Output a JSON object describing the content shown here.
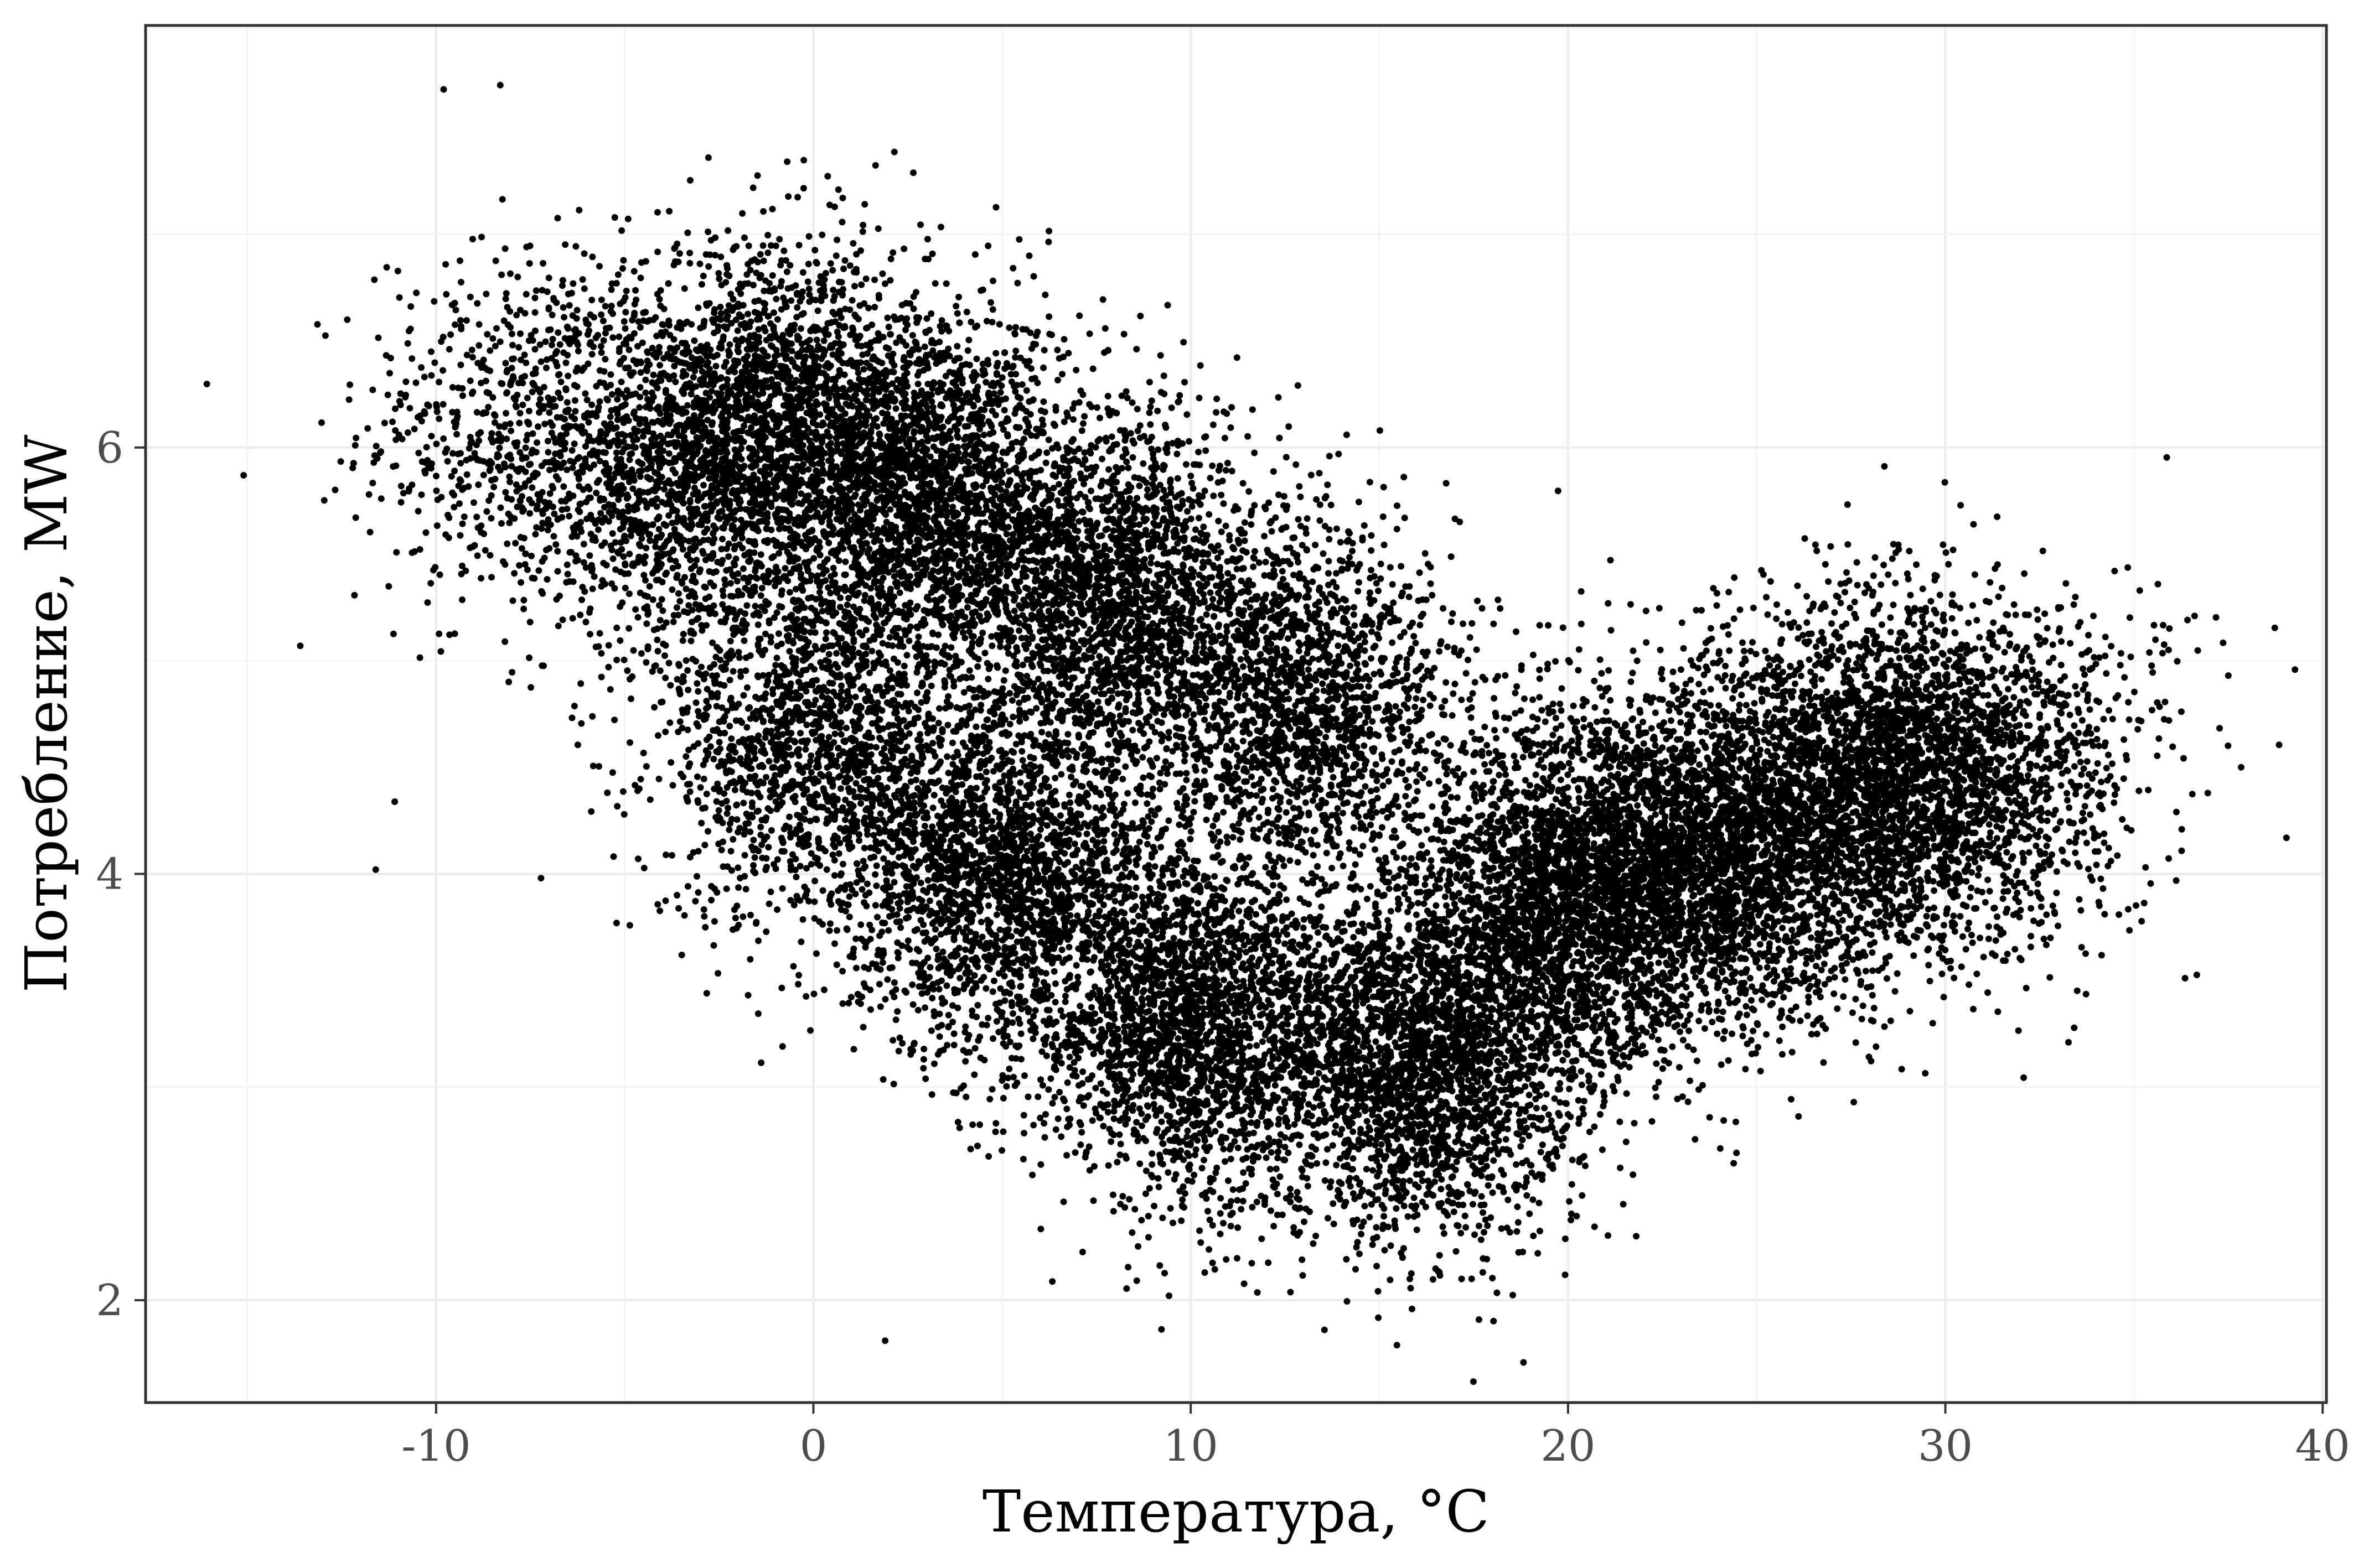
{
  "chart_data": {
    "type": "scatter",
    "title": "",
    "xlabel": "Температура, °C",
    "ylabel": "Потребление, MW",
    "xlim": [
      -17.7,
      40.1
    ],
    "ylim": [
      1.52,
      7.98
    ],
    "x_ticks": [
      -10,
      0,
      10,
      20,
      30,
      40
    ],
    "y_ticks": [
      2,
      4,
      6
    ],
    "x_tick_labels": [
      "-10",
      "0",
      "10",
      "20",
      "30",
      "40"
    ],
    "y_tick_labels": [
      "2",
      "4",
      "6"
    ],
    "grid": true,
    "legend": "none",
    "point_color": "#000000",
    "point_count_approx": 30000,
    "distribution_note_values": {
      "centers": [
        {
          "x": -8,
          "y": 6.1,
          "count": 600
        },
        {
          "x": -4,
          "y": 5.9,
          "count": 1200
        },
        {
          "x": -1,
          "y": 6.1,
          "count": 1800
        },
        {
          "x": 0,
          "y": 4.6,
          "count": 1600
        },
        {
          "x": 3,
          "y": 5.8,
          "count": 2400
        },
        {
          "x": 5,
          "y": 4.0,
          "count": 2200
        },
        {
          "x": 8,
          "y": 5.3,
          "count": 2200
        },
        {
          "x": 10,
          "y": 3.3,
          "count": 2400
        },
        {
          "x": 13,
          "y": 4.8,
          "count": 1800
        },
        {
          "x": 16,
          "y": 3.1,
          "count": 2600
        },
        {
          "x": 20,
          "y": 3.9,
          "count": 2800
        },
        {
          "x": 24,
          "y": 4.1,
          "count": 2400
        },
        {
          "x": 28,
          "y": 4.4,
          "count": 2200
        },
        {
          "x": 31,
          "y": 4.5,
          "count": 1200
        },
        {
          "x": 35,
          "y": 4.8,
          "count": 60
        }
      ],
      "outliers": [
        {
          "x": -15.1,
          "y": 5.87
        },
        {
          "x": 1.9,
          "y": 1.81
        },
        {
          "x": -9.8,
          "y": 7.68
        },
        {
          "x": -8.3,
          "y": 7.7
        },
        {
          "x": 37.5,
          "y": 4.93
        },
        {
          "x": -11.6,
          "y": 4.02
        },
        {
          "x": -13.6,
          "y": 5.07
        }
      ]
    }
  }
}
